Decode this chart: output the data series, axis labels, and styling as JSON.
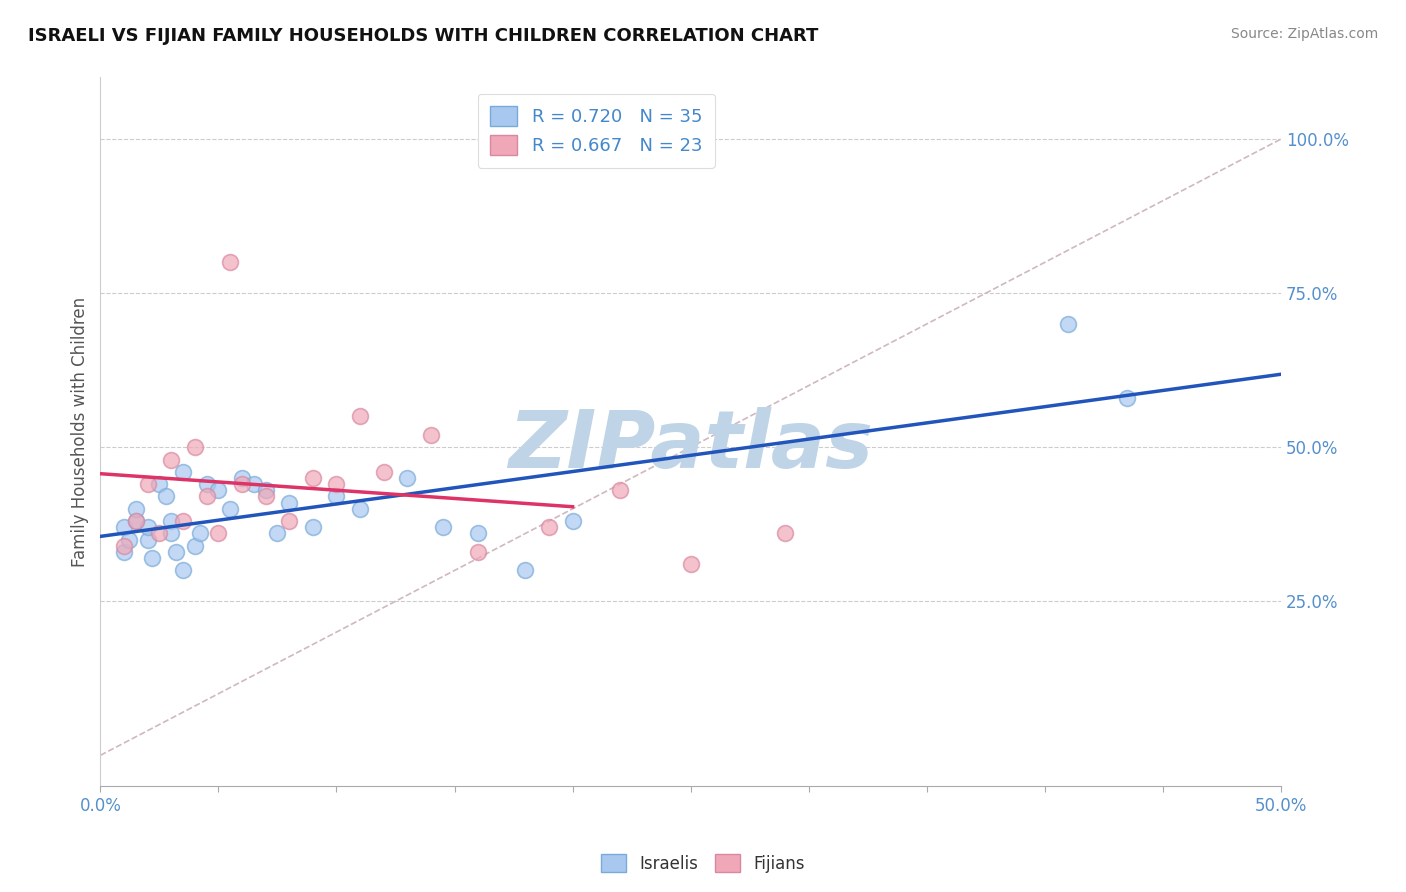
{
  "title": "ISRAELI VS FIJIAN FAMILY HOUSEHOLDS WITH CHILDREN CORRELATION CHART",
  "source_text": "Source: ZipAtlas.com",
  "ylabel": "Family Households with Children",
  "xlim": [
    0.0,
    50.0
  ],
  "ylim": [
    -5.0,
    110.0
  ],
  "xtick_positions": [
    0,
    5,
    10,
    15,
    20,
    25,
    30,
    35,
    40,
    45,
    50
  ],
  "xticklabels": [
    "0.0%",
    "",
    "",
    "",
    "",
    "",
    "",
    "",
    "",
    "",
    "50.0%"
  ],
  "ytick_positions": [
    0,
    25,
    50,
    75,
    100
  ],
  "yticklabels": [
    "",
    "25.0%",
    "50.0%",
    "75.0%",
    "100.0%"
  ],
  "israeli_color": "#a8c8f0",
  "fijian_color": "#f0a8b8",
  "israeli_edge_color": "#7aaad8",
  "fijian_edge_color": "#d888a0",
  "israeli_line_color": "#2255bb",
  "fijian_line_color": "#dd3366",
  "diag_line_color": "#d0b8c0",
  "watermark_color": "#c0d4e8",
  "watermark_text": "ZIPatlas",
  "R_israeli": 0.72,
  "N_israeli": 35,
  "R_fijian": 0.667,
  "N_fijian": 23,
  "israeli_x": [
    1.0,
    1.0,
    1.2,
    1.5,
    1.5,
    2.0,
    2.0,
    2.2,
    2.5,
    2.8,
    3.0,
    3.0,
    3.2,
    3.5,
    3.5,
    4.0,
    4.2,
    4.5,
    5.0,
    5.5,
    6.0,
    6.5,
    7.0,
    7.5,
    8.0,
    9.0,
    10.0,
    11.0,
    13.0,
    14.5,
    16.0,
    18.0,
    20.0,
    41.0,
    43.5
  ],
  "israeli_y": [
    33,
    37,
    35,
    38,
    40,
    35,
    37,
    32,
    44,
    42,
    38,
    36,
    33,
    46,
    30,
    34,
    36,
    44,
    43,
    40,
    45,
    44,
    43,
    36,
    41,
    37,
    42,
    40,
    45,
    37,
    36,
    30,
    38,
    70,
    58
  ],
  "fijian_x": [
    1.0,
    1.5,
    2.0,
    2.5,
    3.0,
    3.5,
    4.0,
    4.5,
    5.0,
    6.0,
    7.0,
    8.0,
    9.0,
    10.0,
    11.0,
    12.0,
    14.0,
    16.0,
    19.0,
    22.0,
    25.0,
    29.0,
    5.5
  ],
  "fijian_y": [
    34,
    38,
    44,
    36,
    48,
    38,
    50,
    42,
    36,
    44,
    42,
    38,
    45,
    44,
    55,
    46,
    52,
    33,
    37,
    43,
    31,
    36,
    80
  ]
}
